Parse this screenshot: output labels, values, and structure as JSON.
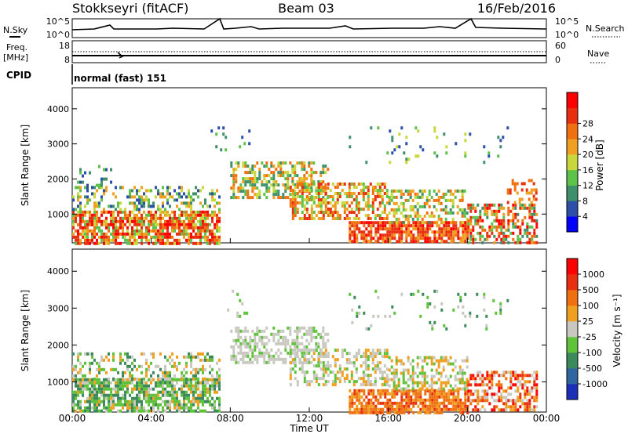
{
  "header": {
    "title": "Stokkseyri (fitACF)",
    "beam": "Beam 03",
    "date": "16/Feb/2016"
  },
  "status_panels": {
    "nsky_label": "N.Sky",
    "nsearch_label": "N.Search",
    "noise_ticks": [
      "10^5",
      "10^0"
    ],
    "freq_label_line1": "Freq.",
    "freq_label_line2": "[MHz]",
    "freq_ticks": [
      "18",
      "8"
    ],
    "nave_label": "Nave",
    "nave_ticks": [
      "60",
      "0"
    ],
    "cpid_label": "CPID",
    "cpid_text": "normal (fast) 151"
  },
  "chart_data": [
    {
      "type": "heatmap",
      "name": "power",
      "ylabel": "Slant Range [km]",
      "yticks": [
        "1000",
        "2000",
        "3000",
        "4000"
      ],
      "ylim": [
        180,
        4600
      ],
      "colorbar_label": "Power [dB]",
      "colorbar_ticks": [
        "4",
        "8",
        "12",
        "16",
        "20",
        "24",
        "28"
      ],
      "colors": [
        "#0000ff",
        "#2d4fa8",
        "#3f8f6a",
        "#5cc24a",
        "#c8d83c",
        "#f0a020",
        "#f07010",
        "#e83010",
        "#ff0000"
      ]
    },
    {
      "type": "heatmap",
      "name": "velocity",
      "ylabel": "Slant Range [km]",
      "yticks": [
        "1000",
        "2000",
        "3000",
        "4000"
      ],
      "ylim": [
        180,
        4600
      ],
      "colorbar_label": "Velocity [m s⁻¹]",
      "colorbar_ticks": [
        "1000",
        "500",
        "100",
        "25",
        "-25",
        "-100",
        "-500",
        "-1000"
      ],
      "colors": [
        "#1c2fb8",
        "#2f66a0",
        "#3c8a5c",
        "#5fc23a",
        "#c8c8c0",
        "#f0a020",
        "#f07010",
        "#e83010",
        "#ff0000"
      ]
    }
  ],
  "x_axis": {
    "label": "Time UT",
    "ticks": [
      "00:00",
      "04:00",
      "08:00",
      "12:00",
      "16:00",
      "20:00",
      "00:00"
    ]
  }
}
